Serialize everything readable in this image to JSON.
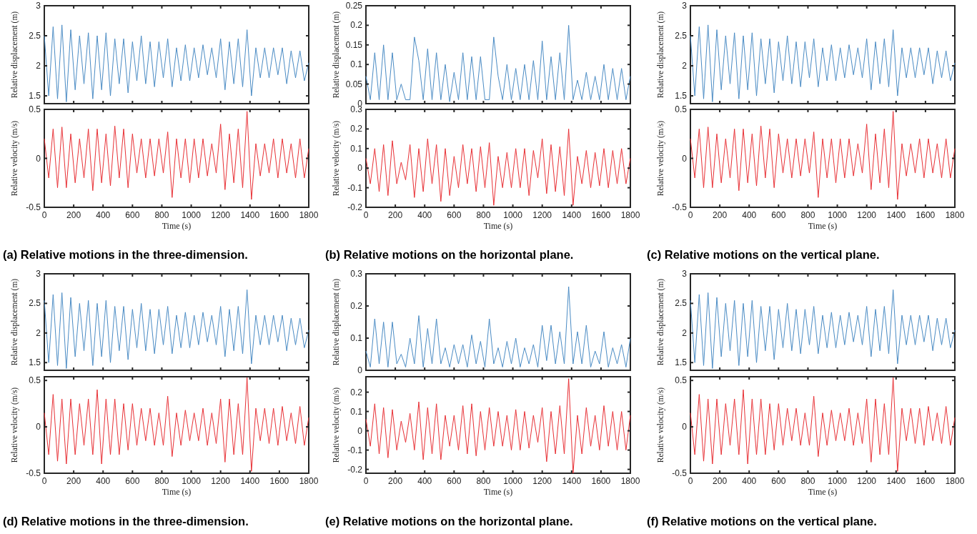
{
  "chart_data": [
    {
      "type": "line",
      "x": [
        0,
        30,
        60,
        90,
        120,
        150,
        180,
        210,
        240,
        270,
        300,
        330,
        360,
        390,
        420,
        450,
        480,
        510,
        540,
        570,
        600,
        630,
        660,
        690,
        720,
        750,
        780,
        810,
        840,
        870,
        900,
        930,
        960,
        990,
        1020,
        1050,
        1080,
        1110,
        1140,
        1170,
        1200,
        1230,
        1260,
        1290,
        1320,
        1350,
        1380,
        1410,
        1440,
        1470,
        1500,
        1530,
        1560,
        1590,
        1620,
        1650,
        1680,
        1710,
        1740,
        1770,
        1800
      ],
      "ylabel": "Relative displacement (m)",
      "xlim": [
        0,
        1800
      ],
      "xticks": [
        0,
        200,
        400,
        600,
        800,
        1000,
        1200,
        1400,
        1600,
        1800
      ],
      "ylim": [
        1.37,
        3
      ],
      "yticks": [
        1.5,
        2,
        2.5,
        3
      ],
      "tick_labels": "y",
      "series": [
        {
          "color": "#4a8bc4",
          "values": [
            2.5,
            1.5,
            2.65,
            1.45,
            2.68,
            1.4,
            2.6,
            1.6,
            2.5,
            1.7,
            2.55,
            1.45,
            2.5,
            1.6,
            2.55,
            1.5,
            2.45,
            1.7,
            2.45,
            1.55,
            2.4,
            1.75,
            2.5,
            1.7,
            2.4,
            1.65,
            2.4,
            1.8,
            2.45,
            1.65,
            2.3,
            1.75,
            2.35,
            1.75,
            2.3,
            1.8,
            2.35,
            1.85,
            2.3,
            1.8,
            2.45,
            1.6,
            2.4,
            1.7,
            2.45,
            1.65,
            2.6,
            1.5,
            2.3,
            1.8,
            2.3,
            1.8,
            2.3,
            1.85,
            2.3,
            1.7,
            2.25,
            1.8,
            2.25,
            1.75,
            2.05
          ]
        }
      ]
    },
    {
      "type": "line",
      "x": [
        0,
        30,
        60,
        90,
        120,
        150,
        180,
        210,
        240,
        270,
        300,
        330,
        360,
        390,
        420,
        450,
        480,
        510,
        540,
        570,
        600,
        630,
        660,
        690,
        720,
        750,
        780,
        810,
        840,
        870,
        900,
        930,
        960,
        990,
        1020,
        1050,
        1080,
        1110,
        1140,
        1170,
        1200,
        1230,
        1260,
        1290,
        1320,
        1350,
        1380,
        1410,
        1440,
        1470,
        1500,
        1530,
        1560,
        1590,
        1620,
        1650,
        1680,
        1710,
        1740,
        1770,
        1800
      ],
      "xlabel": "Time (s)",
      "ylabel": "Relative velocity (m/s)",
      "xlim": [
        0,
        1800
      ],
      "xticks": [
        0,
        200,
        400,
        600,
        800,
        1000,
        1200,
        1400,
        1600,
        1800
      ],
      "ylim": [
        -0.5,
        0.5
      ],
      "yticks": [
        -0.5,
        0,
        0.5
      ],
      "annotations": [
        "(a) Relative motions in the three-dimension."
      ],
      "series": [
        {
          "color": "#e83035",
          "values": [
            0.2,
            -0.2,
            0.3,
            -0.3,
            0.32,
            -0.3,
            0.25,
            -0.25,
            0.2,
            -0.2,
            0.3,
            -0.33,
            0.3,
            -0.25,
            0.25,
            -0.28,
            0.33,
            -0.2,
            0.3,
            -0.3,
            0.25,
            -0.15,
            0.2,
            -0.2,
            0.2,
            -0.18,
            0.2,
            -0.15,
            0.27,
            -0.4,
            0.2,
            -0.2,
            0.2,
            -0.25,
            0.2,
            -0.2,
            0.2,
            -0.18,
            0.15,
            -0.15,
            0.35,
            -0.32,
            0.25,
            -0.25,
            0.3,
            -0.3,
            0.48,
            -0.42,
            0.15,
            -0.18,
            0.15,
            -0.15,
            0.2,
            -0.2,
            0.2,
            -0.15,
            0.15,
            -0.2,
            0.2,
            -0.2,
            0.1
          ]
        }
      ]
    },
    {
      "type": "line",
      "x": [
        0,
        30,
        60,
        90,
        120,
        150,
        180,
        210,
        240,
        270,
        300,
        330,
        360,
        390,
        420,
        450,
        480,
        510,
        540,
        570,
        600,
        630,
        660,
        690,
        720,
        750,
        780,
        810,
        840,
        870,
        900,
        930,
        960,
        990,
        1020,
        1050,
        1080,
        1110,
        1140,
        1170,
        1200,
        1230,
        1260,
        1290,
        1320,
        1350,
        1380,
        1410,
        1440,
        1470,
        1500,
        1530,
        1560,
        1590,
        1620,
        1650,
        1680,
        1710,
        1740,
        1770,
        1800
      ],
      "ylabel": "Relative displacement (m)",
      "xlim": [
        0,
        1800
      ],
      "xticks": [
        0,
        200,
        400,
        600,
        800,
        1000,
        1200,
        1400,
        1600,
        1800
      ],
      "ylim": [
        0,
        0.25
      ],
      "yticks": [
        0,
        0.05,
        0.1,
        0.15,
        0.2,
        0.25
      ],
      "tick_labels": "y",
      "series": [
        {
          "color": "#4a8bc4",
          "values": [
            0.07,
            0.01,
            0.13,
            0.01,
            0.15,
            0.01,
            0.13,
            0.01,
            0.05,
            0.01,
            0.01,
            0.17,
            0.11,
            0.01,
            0.14,
            0.01,
            0.13,
            0.01,
            0.1,
            0.005,
            0.08,
            0.01,
            0.13,
            0.01,
            0.12,
            0.01,
            0.12,
            0.01,
            0.01,
            0.17,
            0.07,
            0.01,
            0.1,
            0.01,
            0.09,
            0.01,
            0.1,
            0.01,
            0.11,
            0.01,
            0.16,
            0.01,
            0.12,
            0.01,
            0.13,
            0.01,
            0.2,
            0.01,
            0.06,
            0.01,
            0.08,
            0.01,
            0.07,
            0.01,
            0.1,
            0.01,
            0.09,
            0.01,
            0.09,
            0.01,
            0.07
          ]
        }
      ]
    },
    {
      "type": "line",
      "x": [
        0,
        30,
        60,
        90,
        120,
        150,
        180,
        210,
        240,
        270,
        300,
        330,
        360,
        390,
        420,
        450,
        480,
        510,
        540,
        570,
        600,
        630,
        660,
        690,
        720,
        750,
        780,
        810,
        840,
        870,
        900,
        930,
        960,
        990,
        1020,
        1050,
        1080,
        1110,
        1140,
        1170,
        1200,
        1230,
        1260,
        1290,
        1320,
        1350,
        1380,
        1410,
        1440,
        1470,
        1500,
        1530,
        1560,
        1590,
        1620,
        1650,
        1680,
        1710,
        1740,
        1770,
        1800
      ],
      "xlabel": "Time (s)",
      "ylabel": "Relative velocity (m/s)",
      "xlim": [
        0,
        1800
      ],
      "xticks": [
        0,
        200,
        400,
        600,
        800,
        1000,
        1200,
        1400,
        1600,
        1800
      ],
      "ylim": [
        -0.2,
        0.3
      ],
      "yticks": [
        -0.2,
        -0.1,
        0,
        0.1,
        0.2,
        0.3
      ],
      "annotations": [
        "(b) Relative motions on the horizontal plane."
      ],
      "series": [
        {
          "color": "#e83035",
          "values": [
            0.05,
            -0.08,
            0.1,
            -0.12,
            0.12,
            -0.14,
            0.14,
            -0.08,
            0.03,
            -0.06,
            0.12,
            -0.15,
            0.1,
            -0.12,
            0.15,
            -0.08,
            0.12,
            -0.17,
            0.1,
            -0.14,
            0.06,
            -0.1,
            0.12,
            -0.08,
            0.1,
            -0.12,
            0.11,
            -0.1,
            0.13,
            -0.19,
            0.06,
            -0.1,
            0.08,
            -0.1,
            0.1,
            -0.1,
            0.1,
            -0.14,
            0.09,
            -0.05,
            0.15,
            -0.13,
            0.12,
            -0.12,
            0.11,
            -0.14,
            0.2,
            -0.19,
            0.06,
            -0.08,
            0.09,
            -0.1,
            0.08,
            -0.09,
            0.1,
            -0.1,
            0.09,
            -0.08,
            0.1,
            -0.08,
            0.05
          ]
        }
      ]
    },
    {
      "type": "line",
      "x": [
        0,
        30,
        60,
        90,
        120,
        150,
        180,
        210,
        240,
        270,
        300,
        330,
        360,
        390,
        420,
        450,
        480,
        510,
        540,
        570,
        600,
        630,
        660,
        690,
        720,
        750,
        780,
        810,
        840,
        870,
        900,
        930,
        960,
        990,
        1020,
        1050,
        1080,
        1110,
        1140,
        1170,
        1200,
        1230,
        1260,
        1290,
        1320,
        1350,
        1380,
        1410,
        1440,
        1470,
        1500,
        1530,
        1560,
        1590,
        1620,
        1650,
        1680,
        1710,
        1740,
        1770,
        1800
      ],
      "ylabel": "Relative displacement (m)",
      "xlim": [
        0,
        1800
      ],
      "xticks": [
        0,
        200,
        400,
        600,
        800,
        1000,
        1200,
        1400,
        1600,
        1800
      ],
      "ylim": [
        1.37,
        3
      ],
      "yticks": [
        1.5,
        2,
        2.5,
        3
      ],
      "tick_labels": "y",
      "series": [
        {
          "color": "#4a8bc4",
          "values": [
            2.5,
            1.5,
            2.65,
            1.45,
            2.68,
            1.4,
            2.6,
            1.6,
            2.5,
            1.7,
            2.55,
            1.45,
            2.5,
            1.6,
            2.55,
            1.5,
            2.45,
            1.7,
            2.45,
            1.55,
            2.4,
            1.75,
            2.5,
            1.7,
            2.4,
            1.65,
            2.4,
            1.8,
            2.45,
            1.65,
            2.3,
            1.75,
            2.35,
            1.75,
            2.3,
            1.8,
            2.35,
            1.85,
            2.3,
            1.8,
            2.45,
            1.6,
            2.4,
            1.7,
            2.45,
            1.65,
            2.6,
            1.5,
            2.3,
            1.8,
            2.3,
            1.8,
            2.3,
            1.85,
            2.3,
            1.7,
            2.25,
            1.8,
            2.25,
            1.75,
            2.05
          ]
        }
      ]
    },
    {
      "type": "line",
      "x": [
        0,
        30,
        60,
        90,
        120,
        150,
        180,
        210,
        240,
        270,
        300,
        330,
        360,
        390,
        420,
        450,
        480,
        510,
        540,
        570,
        600,
        630,
        660,
        690,
        720,
        750,
        780,
        810,
        840,
        870,
        900,
        930,
        960,
        990,
        1020,
        1050,
        1080,
        1110,
        1140,
        1170,
        1200,
        1230,
        1260,
        1290,
        1320,
        1350,
        1380,
        1410,
        1440,
        1470,
        1500,
        1530,
        1560,
        1590,
        1620,
        1650,
        1680,
        1710,
        1740,
        1770,
        1800
      ],
      "xlabel": "Time (s)",
      "ylabel": "Relative velocity (m/s)",
      "xlim": [
        0,
        1800
      ],
      "xticks": [
        0,
        200,
        400,
        600,
        800,
        1000,
        1200,
        1400,
        1600,
        1800
      ],
      "ylim": [
        -0.5,
        0.5
      ],
      "yticks": [
        -0.5,
        0,
        0.5
      ],
      "annotations": [
        "(c) Relative motions on the vertical plane."
      ],
      "series": [
        {
          "color": "#e83035",
          "values": [
            0.2,
            -0.2,
            0.3,
            -0.3,
            0.32,
            -0.3,
            0.25,
            -0.25,
            0.2,
            -0.2,
            0.3,
            -0.33,
            0.3,
            -0.25,
            0.25,
            -0.28,
            0.33,
            -0.2,
            0.3,
            -0.3,
            0.25,
            -0.15,
            0.2,
            -0.2,
            0.2,
            -0.18,
            0.2,
            -0.15,
            0.27,
            -0.4,
            0.2,
            -0.2,
            0.2,
            -0.25,
            0.2,
            -0.2,
            0.2,
            -0.18,
            0.15,
            -0.15,
            0.35,
            -0.32,
            0.25,
            -0.25,
            0.3,
            -0.3,
            0.48,
            -0.42,
            0.15,
            -0.18,
            0.15,
            -0.15,
            0.2,
            -0.2,
            0.2,
            -0.15,
            0.15,
            -0.2,
            0.2,
            -0.2,
            0.1
          ]
        }
      ]
    },
    {
      "type": "line",
      "x": [
        0,
        30,
        60,
        90,
        120,
        150,
        180,
        210,
        240,
        270,
        300,
        330,
        360,
        390,
        420,
        450,
        480,
        510,
        540,
        570,
        600,
        630,
        660,
        690,
        720,
        750,
        780,
        810,
        840,
        870,
        900,
        930,
        960,
        990,
        1020,
        1050,
        1080,
        1110,
        1140,
        1170,
        1200,
        1230,
        1260,
        1290,
        1320,
        1350,
        1380,
        1410,
        1440,
        1470,
        1500,
        1530,
        1560,
        1590,
        1620,
        1650,
        1680,
        1710,
        1740,
        1770,
        1800
      ],
      "ylabel": "Relative displacement (m)",
      "xlim": [
        0,
        1800
      ],
      "xticks": [
        0,
        200,
        400,
        600,
        800,
        1000,
        1200,
        1400,
        1600,
        1800
      ],
      "ylim": [
        1.37,
        3
      ],
      "yticks": [
        1.5,
        2,
        2.5,
        3
      ],
      "tick_labels": "y",
      "series": [
        {
          "color": "#4a8bc4",
          "values": [
            2.55,
            1.5,
            2.65,
            1.45,
            2.68,
            1.4,
            2.6,
            1.6,
            2.5,
            1.7,
            2.55,
            1.45,
            2.5,
            1.6,
            2.55,
            1.5,
            2.45,
            1.7,
            2.45,
            1.55,
            2.4,
            1.75,
            2.5,
            1.7,
            2.4,
            1.65,
            2.4,
            1.8,
            2.45,
            1.65,
            2.3,
            1.75,
            2.35,
            1.75,
            2.3,
            1.8,
            2.35,
            1.85,
            2.3,
            1.8,
            2.45,
            1.6,
            2.4,
            1.7,
            2.45,
            1.65,
            2.73,
            1.48,
            2.3,
            1.8,
            2.3,
            1.8,
            2.3,
            1.85,
            2.3,
            1.7,
            2.25,
            1.8,
            2.25,
            1.75,
            2.05
          ]
        }
      ]
    },
    {
      "type": "line",
      "x": [
        0,
        30,
        60,
        90,
        120,
        150,
        180,
        210,
        240,
        270,
        300,
        330,
        360,
        390,
        420,
        450,
        480,
        510,
        540,
        570,
        600,
        630,
        660,
        690,
        720,
        750,
        780,
        810,
        840,
        870,
        900,
        930,
        960,
        990,
        1020,
        1050,
        1080,
        1110,
        1140,
        1170,
        1200,
        1230,
        1260,
        1290,
        1320,
        1350,
        1380,
        1410,
        1440,
        1470,
        1500,
        1530,
        1560,
        1590,
        1620,
        1650,
        1680,
        1710,
        1740,
        1770,
        1800
      ],
      "xlabel": "Time (s)",
      "ylabel": "Relative velocity (m/s)",
      "xlim": [
        0,
        1800
      ],
      "xticks": [
        0,
        200,
        400,
        600,
        800,
        1000,
        1200,
        1400,
        1600,
        1800
      ],
      "ylim": [
        -0.5,
        0.54
      ],
      "yticks": [
        -0.5,
        0,
        0.5
      ],
      "annotations": [
        "(d) Relative motions in the three-dimension."
      ],
      "series": [
        {
          "color": "#e83035",
          "values": [
            0.15,
            -0.3,
            0.35,
            -0.37,
            0.3,
            -0.4,
            0.3,
            -0.3,
            0.25,
            -0.2,
            0.3,
            -0.3,
            0.4,
            -0.4,
            0.3,
            -0.3,
            0.3,
            -0.3,
            0.25,
            -0.25,
            0.25,
            -0.2,
            0.2,
            -0.15,
            0.2,
            -0.2,
            0.15,
            -0.2,
            0.33,
            -0.32,
            0.15,
            -0.2,
            0.18,
            -0.15,
            0.15,
            -0.15,
            0.2,
            -0.2,
            0.15,
            -0.18,
            0.3,
            -0.38,
            0.3,
            -0.3,
            0.25,
            -0.3,
            0.53,
            -0.48,
            0.2,
            -0.15,
            0.2,
            -0.18,
            0.2,
            -0.2,
            0.22,
            -0.15,
            0.15,
            -0.18,
            0.22,
            -0.2,
            0.1
          ]
        }
      ]
    },
    {
      "type": "line",
      "x": [
        0,
        30,
        60,
        90,
        120,
        150,
        180,
        210,
        240,
        270,
        300,
        330,
        360,
        390,
        420,
        450,
        480,
        510,
        540,
        570,
        600,
        630,
        660,
        690,
        720,
        750,
        780,
        810,
        840,
        870,
        900,
        930,
        960,
        990,
        1020,
        1050,
        1080,
        1110,
        1140,
        1170,
        1200,
        1230,
        1260,
        1290,
        1320,
        1350,
        1380,
        1410,
        1440,
        1470,
        1500,
        1530,
        1560,
        1590,
        1620,
        1650,
        1680,
        1710,
        1740,
        1770,
        1800
      ],
      "ylabel": "Relative displacement (m)",
      "xlim": [
        0,
        1800
      ],
      "xticks": [
        0,
        200,
        400,
        600,
        800,
        1000,
        1200,
        1400,
        1600,
        1800
      ],
      "ylim": [
        0,
        0.3
      ],
      "yticks": [
        0,
        0.1,
        0.2,
        0.3
      ],
      "tick_labels": "y",
      "series": [
        {
          "color": "#4a8bc4",
          "values": [
            0.06,
            0.01,
            0.16,
            0.02,
            0.15,
            0.01,
            0.15,
            0.02,
            0.05,
            0.01,
            0.1,
            0.02,
            0.17,
            0.01,
            0.13,
            0.02,
            0.16,
            0.02,
            0.07,
            0.01,
            0.08,
            0.02,
            0.08,
            0.01,
            0.11,
            0.02,
            0.09,
            0.01,
            0.16,
            0.02,
            0.07,
            0.01,
            0.09,
            0.02,
            0.1,
            0.01,
            0.07,
            0.02,
            0.08,
            0.01,
            0.14,
            0.03,
            0.14,
            0.02,
            0.12,
            0.02,
            0.26,
            0.02,
            0.12,
            0.02,
            0.14,
            0.01,
            0.06,
            0.02,
            0.12,
            0.01,
            0.07,
            0.02,
            0.08,
            0.01,
            0.1
          ]
        }
      ]
    },
    {
      "type": "line",
      "x": [
        0,
        30,
        60,
        90,
        120,
        150,
        180,
        210,
        240,
        270,
        300,
        330,
        360,
        390,
        420,
        450,
        480,
        510,
        540,
        570,
        600,
        630,
        660,
        690,
        720,
        750,
        780,
        810,
        840,
        870,
        900,
        930,
        960,
        990,
        1020,
        1050,
        1080,
        1110,
        1140,
        1170,
        1200,
        1230,
        1260,
        1290,
        1320,
        1350,
        1380,
        1410,
        1440,
        1470,
        1500,
        1530,
        1560,
        1590,
        1620,
        1650,
        1680,
        1710,
        1740,
        1770,
        1800
      ],
      "xlabel": "Time (s)",
      "ylabel": "Relative velocity (m/s)",
      "xlim": [
        0,
        1800
      ],
      "xticks": [
        0,
        200,
        400,
        600,
        800,
        1000,
        1200,
        1400,
        1600,
        1800
      ],
      "ylim": [
        -0.22,
        0.28
      ],
      "yticks": [
        -0.2,
        -0.1,
        0,
        0.1,
        0.2
      ],
      "annotations": [
        "(e) Relative motions on the horizontal plane."
      ],
      "series": [
        {
          "color": "#e83035",
          "values": [
            0.06,
            -0.08,
            0.14,
            -0.12,
            0.12,
            -0.14,
            0.11,
            -0.1,
            0.05,
            -0.06,
            0.09,
            -0.1,
            0.15,
            -0.15,
            0.12,
            -0.12,
            0.14,
            -0.15,
            0.08,
            -0.08,
            0.08,
            -0.1,
            0.13,
            -0.12,
            0.14,
            -0.13,
            0.1,
            -0.1,
            0.12,
            -0.08,
            0.1,
            -0.08,
            0.08,
            -0.1,
            0.11,
            -0.1,
            0.1,
            -0.09,
            0.08,
            -0.06,
            0.12,
            -0.16,
            0.1,
            -0.12,
            0.13,
            -0.12,
            0.27,
            -0.22,
            0.08,
            -0.12,
            0.12,
            -0.08,
            0.08,
            -0.1,
            0.13,
            -0.08,
            0.1,
            -0.1,
            0.1,
            -0.1,
            0.08
          ]
        }
      ]
    },
    {
      "type": "line",
      "x": [
        0,
        30,
        60,
        90,
        120,
        150,
        180,
        210,
        240,
        270,
        300,
        330,
        360,
        390,
        420,
        450,
        480,
        510,
        540,
        570,
        600,
        630,
        660,
        690,
        720,
        750,
        780,
        810,
        840,
        870,
        900,
        930,
        960,
        990,
        1020,
        1050,
        1080,
        1110,
        1140,
        1170,
        1200,
        1230,
        1260,
        1290,
        1320,
        1350,
        1380,
        1410,
        1440,
        1470,
        1500,
        1530,
        1560,
        1590,
        1620,
        1650,
        1680,
        1710,
        1740,
        1770,
        1800
      ],
      "ylabel": "Relative displacement (m)",
      "xlim": [
        0,
        1800
      ],
      "xticks": [
        0,
        200,
        400,
        600,
        800,
        1000,
        1200,
        1400,
        1600,
        1800
      ],
      "ylim": [
        1.37,
        3
      ],
      "yticks": [
        1.5,
        2,
        2.5,
        3
      ],
      "tick_labels": "y",
      "series": [
        {
          "color": "#4a8bc4",
          "values": [
            2.55,
            1.5,
            2.65,
            1.45,
            2.68,
            1.4,
            2.6,
            1.6,
            2.5,
            1.7,
            2.55,
            1.45,
            2.5,
            1.6,
            2.55,
            1.5,
            2.45,
            1.7,
            2.45,
            1.55,
            2.4,
            1.75,
            2.5,
            1.7,
            2.4,
            1.65,
            2.4,
            1.8,
            2.45,
            1.65,
            2.3,
            1.75,
            2.35,
            1.75,
            2.3,
            1.8,
            2.35,
            1.85,
            2.3,
            1.8,
            2.45,
            1.6,
            2.4,
            1.7,
            2.45,
            1.65,
            2.73,
            1.48,
            2.3,
            1.8,
            2.3,
            1.8,
            2.3,
            1.85,
            2.3,
            1.7,
            2.25,
            1.8,
            2.25,
            1.75,
            2.05
          ]
        }
      ]
    },
    {
      "type": "line",
      "x": [
        0,
        30,
        60,
        90,
        120,
        150,
        180,
        210,
        240,
        270,
        300,
        330,
        360,
        390,
        420,
        450,
        480,
        510,
        540,
        570,
        600,
        630,
        660,
        690,
        720,
        750,
        780,
        810,
        840,
        870,
        900,
        930,
        960,
        990,
        1020,
        1050,
        1080,
        1110,
        1140,
        1170,
        1200,
        1230,
        1260,
        1290,
        1320,
        1350,
        1380,
        1410,
        1440,
        1470,
        1500,
        1530,
        1560,
        1590,
        1620,
        1650,
        1680,
        1710,
        1740,
        1770,
        1800
      ],
      "xlabel": "Time (s)",
      "ylabel": "Relative velocity (m/s)",
      "xlim": [
        0,
        1800
      ],
      "xticks": [
        0,
        200,
        400,
        600,
        800,
        1000,
        1200,
        1400,
        1600,
        1800
      ],
      "ylim": [
        -0.5,
        0.54
      ],
      "yticks": [
        -0.5,
        0,
        0.5
      ],
      "annotations": [
        "(f) Relative motions on the vertical plane."
      ],
      "series": [
        {
          "color": "#e83035",
          "values": [
            0.15,
            -0.3,
            0.35,
            -0.37,
            0.3,
            -0.4,
            0.3,
            -0.3,
            0.25,
            -0.2,
            0.3,
            -0.3,
            0.4,
            -0.4,
            0.3,
            -0.3,
            0.3,
            -0.3,
            0.25,
            -0.25,
            0.25,
            -0.2,
            0.2,
            -0.15,
            0.2,
            -0.2,
            0.15,
            -0.2,
            0.33,
            -0.32,
            0.15,
            -0.2,
            0.18,
            -0.15,
            0.15,
            -0.15,
            0.2,
            -0.2,
            0.15,
            -0.18,
            0.3,
            -0.38,
            0.3,
            -0.3,
            0.25,
            -0.3,
            0.53,
            -0.48,
            0.2,
            -0.15,
            0.2,
            -0.18,
            0.2,
            -0.2,
            0.22,
            -0.15,
            0.15,
            -0.18,
            0.22,
            -0.2,
            0.1
          ]
        }
      ]
    }
  ]
}
